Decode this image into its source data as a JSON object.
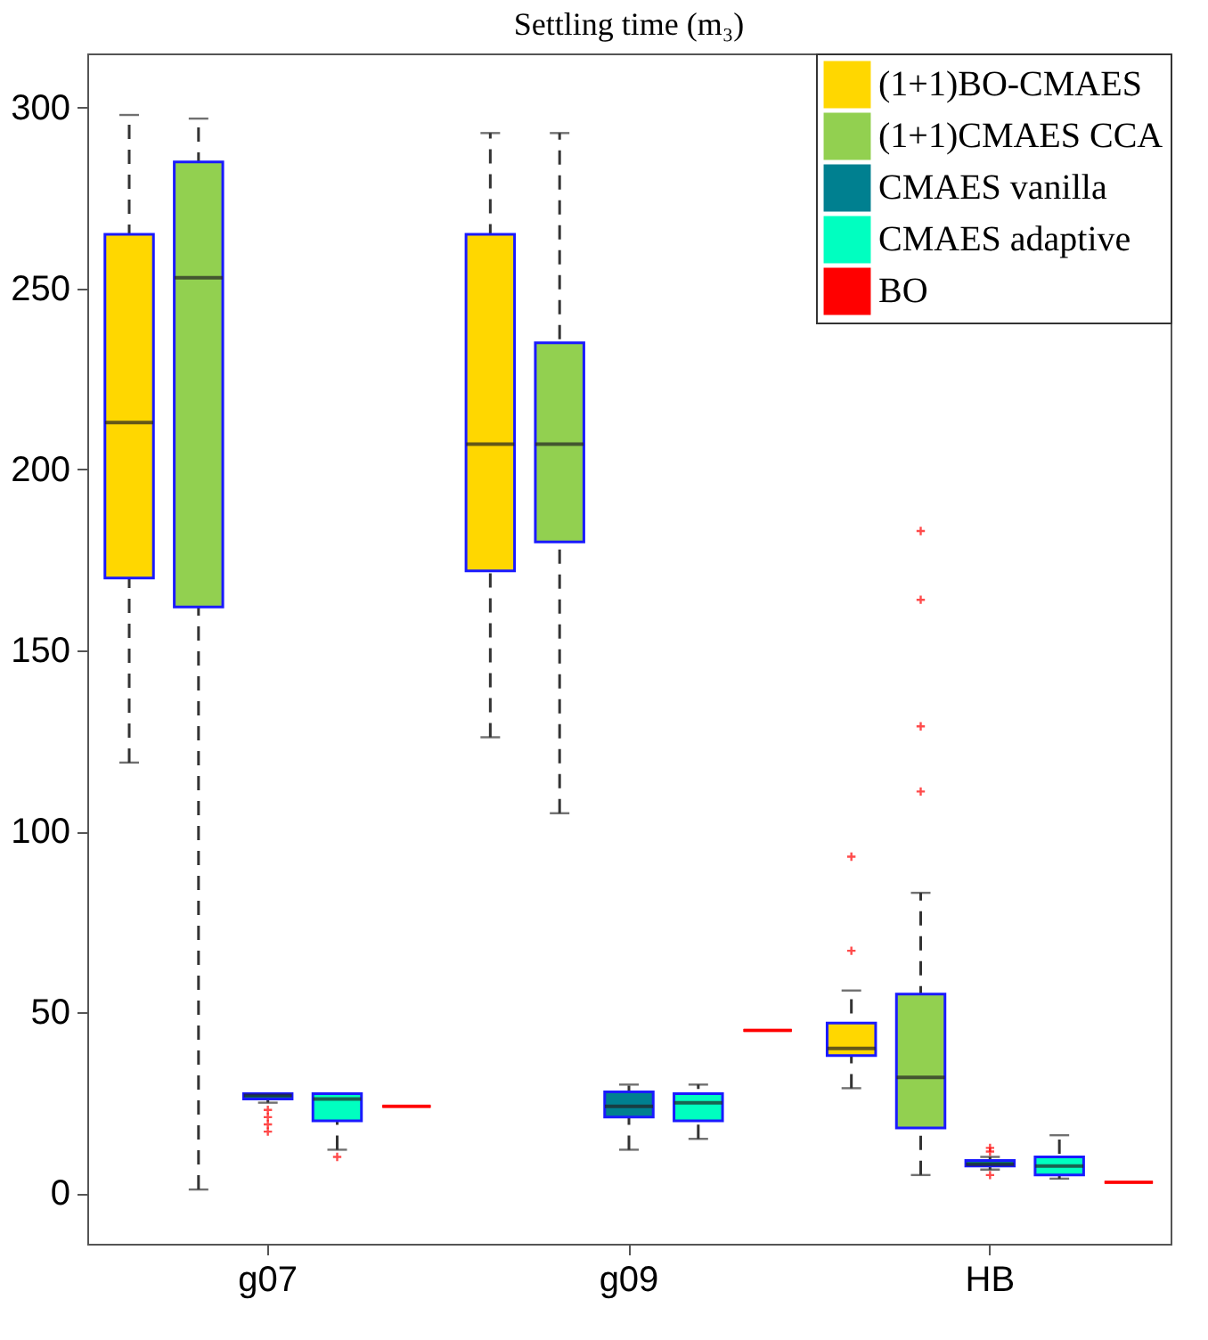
{
  "chart_data": {
    "type": "box",
    "title": "Settling time (m₃)",
    "categories": [
      "g07",
      "g09",
      "HB"
    ],
    "series": [
      {
        "name": "(1+1)BO-CMAES",
        "color": "#ffd700",
        "boxes": [
          {
            "low": 119,
            "q1": 170,
            "median": 213,
            "q3": 265,
            "high": 298
          },
          {
            "low": 126,
            "q1": 172,
            "median": 207,
            "q3": 265,
            "high": 293
          },
          {
            "low": 29,
            "q1": 38,
            "median": 40,
            "q3": 47,
            "high": 56,
            "outliers": [
              67,
              93
            ]
          }
        ]
      },
      {
        "name": "(1+1)CMAES CCA",
        "color": "#92d050",
        "boxes": [
          {
            "low": 1,
            "q1": 162,
            "median": 253,
            "q3": 285,
            "high": 297
          },
          {
            "low": 105,
            "q1": 180,
            "median": 207,
            "q3": 235,
            "high": 293
          },
          {
            "low": 5,
            "q1": 18,
            "median": 32,
            "q3": 55,
            "high": 83,
            "outliers": [
              111,
              129,
              164,
              183
            ]
          }
        ]
      },
      {
        "name": "CMAES vanilla",
        "color": "#008090",
        "boxes": [
          {
            "low": 25,
            "q1": 26,
            "median": 27,
            "q3": 27.5,
            "high": 27.5,
            "outliers": [
              23,
              21,
              19,
              17
            ]
          },
          {
            "low": 12,
            "q1": 21,
            "median": 24,
            "q3": 28,
            "high": 30
          },
          {
            "low": 6.5,
            "q1": 7.5,
            "median": 8,
            "q3": 9,
            "high": 10,
            "outliers": [
              12.5,
              11.5,
              5
            ]
          }
        ]
      },
      {
        "name": "CMAES adaptive",
        "color": "#00ffc0",
        "boxes": [
          {
            "low": 12,
            "q1": 20,
            "median": 26,
            "q3": 27.5,
            "high": 27.5,
            "outliers": [
              10
            ]
          },
          {
            "low": 15,
            "q1": 20,
            "median": 25,
            "q3": 27.5,
            "high": 30
          },
          {
            "low": 4,
            "q1": 5,
            "median": 7.5,
            "q3": 10,
            "high": 16
          }
        ]
      },
      {
        "name": "BO",
        "color": "#ff0000",
        "boxes": [
          {
            "low": 24,
            "q1": 24,
            "median": 24,
            "q3": 24,
            "high": 24
          },
          {
            "low": 45,
            "q1": 45,
            "median": 45,
            "q3": 45,
            "high": 45
          },
          {
            "low": 3,
            "q1": 3,
            "median": 3,
            "q3": 3,
            "high": 3
          }
        ]
      }
    ],
    "ylim": [
      -14,
      315
    ],
    "yticks": [
      0,
      50,
      100,
      150,
      200,
      250,
      300
    ],
    "grid": false,
    "legend": "top right"
  }
}
